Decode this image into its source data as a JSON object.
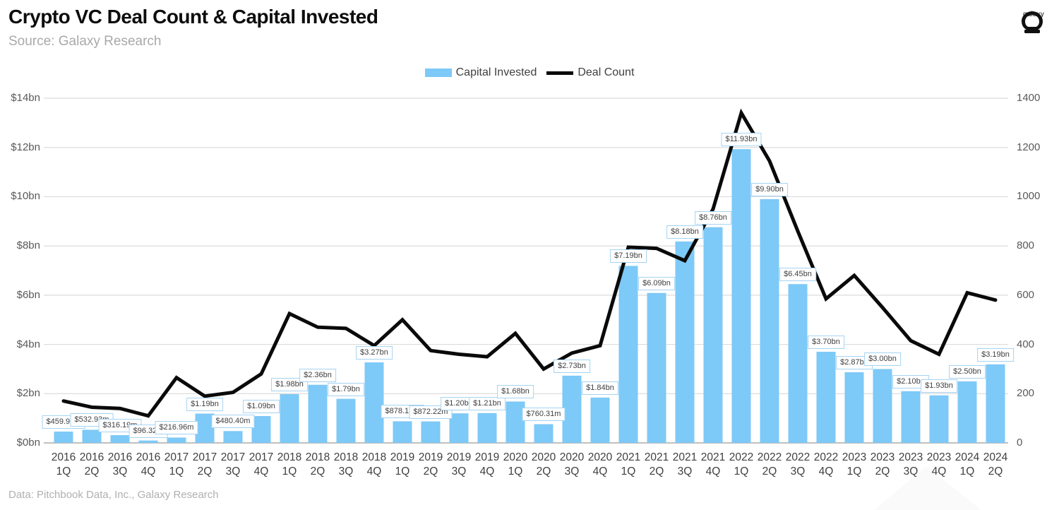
{
  "header": {
    "title": "Crypto VC Deal Count & Capital Invested",
    "subtitle": "Source: Galaxy Research",
    "logo_text": "galaxy"
  },
  "legend": {
    "items": [
      {
        "label": "Capital Invested",
        "type": "bar",
        "color": "#7dc9f7"
      },
      {
        "label": "Deal Count",
        "type": "line",
        "color": "#0a0a0a"
      }
    ]
  },
  "footer": {
    "text": "Data: Pitchbook Data, Inc., Galaxy Research"
  },
  "colors": {
    "bar": "#7dc9f7",
    "line": "#0a0a0a",
    "grid": "#dcdcdc",
    "baseline": "#c0c0c0",
    "label_border": "#a5d3f2"
  },
  "chart_data": {
    "type": "bar",
    "subtype": "bar+line dual axis",
    "title": "Crypto VC Deal Count & Capital Invested",
    "categories": [
      [
        "2016",
        "1Q"
      ],
      [
        "2016",
        "2Q"
      ],
      [
        "2016",
        "3Q"
      ],
      [
        "2016",
        "4Q"
      ],
      [
        "2017",
        "1Q"
      ],
      [
        "2017",
        "2Q"
      ],
      [
        "2017",
        "3Q"
      ],
      [
        "2017",
        "4Q"
      ],
      [
        "2018",
        "1Q"
      ],
      [
        "2018",
        "2Q"
      ],
      [
        "2018",
        "3Q"
      ],
      [
        "2018",
        "4Q"
      ],
      [
        "2019",
        "1Q"
      ],
      [
        "2019",
        "2Q"
      ],
      [
        "2019",
        "3Q"
      ],
      [
        "2019",
        "4Q"
      ],
      [
        "2020",
        "1Q"
      ],
      [
        "2020",
        "2Q"
      ],
      [
        "2020",
        "3Q"
      ],
      [
        "2020",
        "4Q"
      ],
      [
        "2021",
        "1Q"
      ],
      [
        "2021",
        "2Q"
      ],
      [
        "2021",
        "3Q"
      ],
      [
        "2021",
        "4Q"
      ],
      [
        "2022",
        "1Q"
      ],
      [
        "2022",
        "2Q"
      ],
      [
        "2022",
        "3Q"
      ],
      [
        "2022",
        "4Q"
      ],
      [
        "2023",
        "1Q"
      ],
      [
        "2023",
        "2Q"
      ],
      [
        "2023",
        "3Q"
      ],
      [
        "2023",
        "4Q"
      ],
      [
        "2024",
        "1Q"
      ],
      [
        "2024",
        "2Q"
      ]
    ],
    "series": [
      {
        "name": "Capital Invested",
        "type": "bar",
        "axis": "left",
        "unit": "USD billions",
        "color": "#7dc9f7",
        "values": [
          0.45995,
          0.53293,
          0.31619,
          0.09632,
          0.21696,
          1.19,
          0.4804,
          1.09,
          1.98,
          2.36,
          1.79,
          3.27,
          0.8781,
          0.87222,
          1.2,
          1.21,
          1.68,
          0.76031,
          2.73,
          1.84,
          7.19,
          6.09,
          8.18,
          8.76,
          11.93,
          9.9,
          6.45,
          3.7,
          2.87,
          3.0,
          2.1,
          1.93,
          2.5,
          3.19
        ],
        "labels": [
          "$459.95m",
          "$532.93m",
          "$316.19m",
          "$96.32m",
          "$216.96m",
          "$1.19bn",
          "$480.40m",
          "$1.09bn",
          "$1.98bn",
          "$2.36bn",
          "$1.79bn",
          "$3.27bn",
          "$878.10m",
          "$872.22m",
          "$1.20bn",
          "$1.21bn",
          "$1.68bn",
          "$760.31m",
          "$2.73bn",
          "$1.84bn",
          "$7.19bn",
          "$6.09bn",
          "$8.18bn",
          "$8.76bn",
          "$11.93bn",
          "$9.90bn",
          "$6.45bn",
          "$3.70bn",
          "$2.87bn",
          "$3.00bn",
          "$2.10bn",
          "$1.93bn",
          "$2.50bn",
          "$3.19bn"
        ]
      },
      {
        "name": "Deal Count",
        "type": "line",
        "axis": "right",
        "unit": "deals",
        "color": "#0a0a0a",
        "values": [
          170,
          145,
          140,
          110,
          265,
          190,
          205,
          280,
          525,
          470,
          465,
          395,
          500,
          375,
          360,
          350,
          445,
          300,
          365,
          395,
          795,
          790,
          740,
          950,
          1340,
          1145,
          860,
          585,
          680,
          550,
          415,
          360,
          610,
          580
        ]
      }
    ],
    "left_axis": {
      "min": 0,
      "max": 14,
      "step": 2,
      "tick_labels": [
        "$0bn",
        "$2bn",
        "$4bn",
        "$6bn",
        "$8bn",
        "$10bn",
        "$12bn",
        "$14bn"
      ]
    },
    "right_axis": {
      "min": 0,
      "max": 1400,
      "step": 200,
      "tick_labels": [
        "0",
        "200",
        "400",
        "600",
        "800",
        "1000",
        "1200",
        "1400"
      ]
    },
    "grid": true,
    "legend_position": "top"
  }
}
